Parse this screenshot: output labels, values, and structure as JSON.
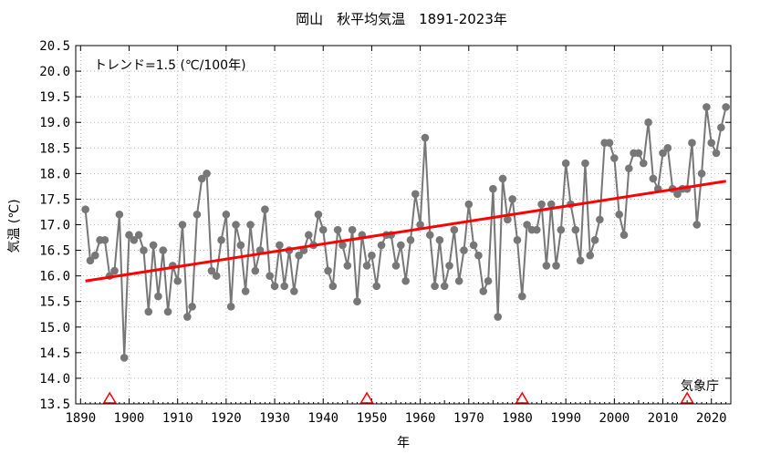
{
  "chart_data": {
    "type": "line",
    "title": "岡山　秋平均気温　1891-2023年",
    "xlabel": "年",
    "ylabel": "気温 (℃)",
    "trend_label": "トレンド=1.5 (℃/100年)",
    "source_label": "気象庁",
    "xlim": [
      1889,
      2024
    ],
    "ylim": [
      13.5,
      20.5
    ],
    "x_ticks": [
      1890,
      1900,
      1910,
      1920,
      1930,
      1940,
      1950,
      1960,
      1970,
      1980,
      1990,
      2000,
      2010,
      2020
    ],
    "y_ticks": [
      13.5,
      14.0,
      14.5,
      15.0,
      15.5,
      16.0,
      16.5,
      17.0,
      17.5,
      18.0,
      18.5,
      19.0,
      19.5,
      20.0,
      20.5
    ],
    "grid": true,
    "colors": {
      "series": "#777777",
      "trend": "#ff0000",
      "marker": "#ff0000",
      "grid": "#aaaaaa"
    },
    "series": [
      {
        "x": [
          1891,
          1892,
          1893,
          1894,
          1895,
          1896,
          1897,
          1898,
          1899,
          1900,
          1901,
          1902,
          1903,
          1904,
          1905,
          1906,
          1907,
          1908,
          1909,
          1910,
          1911,
          1912,
          1913,
          1914,
          1915,
          1916,
          1917,
          1918,
          1919,
          1920,
          1921,
          1922,
          1923,
          1924,
          1925,
          1926,
          1927,
          1928,
          1929,
          1930,
          1931,
          1932,
          1933,
          1934,
          1935,
          1936,
          1937,
          1938,
          1939,
          1940,
          1941,
          1942,
          1943,
          1944,
          1945,
          1946,
          1947,
          1948,
          1949,
          1950,
          1951,
          1952,
          1953,
          1954,
          1955,
          1956,
          1957,
          1958,
          1959,
          1960,
          1961,
          1962,
          1963,
          1964,
          1965,
          1966,
          1967,
          1968,
          1969,
          1970,
          1971,
          1972,
          1973,
          1974,
          1975,
          1976,
          1977,
          1978,
          1979,
          1980,
          1981,
          1982,
          1983,
          1984,
          1985,
          1986,
          1987,
          1988,
          1989,
          1990,
          1991,
          1992,
          1993,
          1994,
          1995,
          1996,
          1997,
          1998,
          1999,
          2000,
          2001,
          2002,
          2003,
          2004,
          2005,
          2006,
          2007,
          2008,
          2009,
          2010,
          2011,
          2012,
          2013,
          2014,
          2015,
          2016,
          2017,
          2018,
          2019,
          2020,
          2021,
          2022,
          2023
        ],
        "values": [
          17.3,
          16.3,
          16.4,
          16.7,
          16.7,
          16.0,
          16.1,
          17.2,
          14.4,
          16.8,
          16.7,
          16.8,
          16.5,
          15.3,
          16.6,
          15.6,
          16.5,
          15.3,
          16.2,
          15.9,
          17.0,
          15.2,
          15.4,
          17.2,
          17.9,
          18.0,
          16.1,
          16.0,
          16.7,
          17.2,
          15.4,
          17.0,
          16.6,
          15.7,
          17.0,
          16.1,
          16.5,
          17.3,
          16.0,
          15.8,
          16.6,
          15.8,
          16.5,
          15.7,
          16.4,
          16.5,
          16.8,
          16.6,
          17.2,
          16.9,
          16.1,
          15.8,
          16.9,
          16.6,
          16.2,
          16.9,
          15.5,
          16.8,
          16.2,
          16.4,
          15.8,
          16.6,
          16.8,
          16.8,
          16.2,
          16.6,
          15.9,
          16.7,
          17.6,
          17.0,
          18.7,
          16.8,
          15.8,
          16.7,
          15.8,
          16.2,
          16.9,
          15.9,
          16.5,
          17.4,
          16.6,
          16.4,
          15.7,
          15.9,
          17.7,
          15.2,
          17.9,
          17.1,
          17.5,
          16.7,
          15.6,
          17.0,
          16.9,
          16.9,
          17.4,
          16.2,
          17.4,
          16.2,
          16.9,
          18.2,
          17.4,
          16.9,
          16.3,
          18.2,
          16.4,
          16.7,
          17.1,
          18.6,
          18.6,
          18.3,
          17.2,
          16.8,
          18.1,
          18.4,
          18.4,
          18.2,
          19.0,
          17.9,
          17.7,
          18.4,
          18.5,
          17.7,
          17.6,
          17.7,
          17.7,
          18.6,
          17.0,
          18.0,
          19.3,
          18.6,
          18.4,
          18.9,
          19.3
        ]
      }
    ],
    "trend": {
      "x": [
        1891,
        2023
      ],
      "y": [
        15.9,
        17.85
      ]
    },
    "relocation_markers": [
      1896,
      1949,
      1981,
      2015
    ]
  }
}
